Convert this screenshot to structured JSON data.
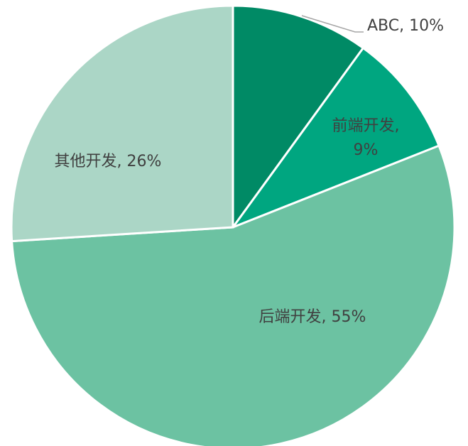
{
  "chart_data": {
    "type": "pie",
    "categories": [
      "ABC",
      "前端开发",
      "后端开发",
      "其他开发"
    ],
    "values": [
      10,
      9,
      55,
      26
    ],
    "value_labels": [
      "10%",
      "9%",
      "55%",
      "26%"
    ],
    "label_separator": ",",
    "colors": [
      "#008a65",
      "#00a680",
      "#6cc2a2",
      "#abd6c6"
    ]
  }
}
